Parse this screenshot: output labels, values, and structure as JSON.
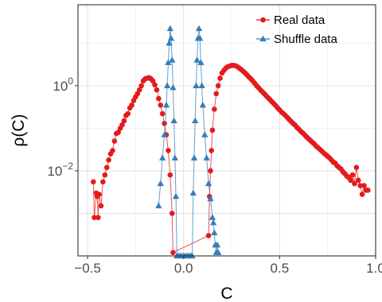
{
  "chart_data": {
    "type": "line",
    "xlabel": "C",
    "ylabel": "ρ(C)",
    "y_scale": "log",
    "xlim": [
      -0.55,
      1.0
    ],
    "ylim": [
      0.0001,
      80
    ],
    "x_ticks": [
      {
        "value": -0.5,
        "label": "−0.5"
      },
      {
        "value": 0.0,
        "label": "0.0"
      },
      {
        "value": 0.5,
        "label": "0.5"
      },
      {
        "value": 1.0,
        "label": "1.0"
      }
    ],
    "y_ticks": [
      {
        "value": 0.01,
        "base": "10",
        "exp": "−2"
      },
      {
        "value": 1,
        "base": "10",
        "exp": "0"
      }
    ],
    "grid": true,
    "legend_position": "top-right",
    "series": [
      {
        "name": "Real data",
        "color": "#e41a1c",
        "marker": "circle",
        "points": [
          [
            -0.47,
            0.0055
          ],
          [
            -0.465,
            0.0008
          ],
          [
            -0.455,
            0.003
          ],
          [
            -0.45,
            0.0025
          ],
          [
            -0.445,
            0.0008
          ],
          [
            -0.44,
            0.0028
          ],
          [
            -0.43,
            0.0015
          ],
          [
            -0.42,
            0.0055
          ],
          [
            -0.41,
            0.008
          ],
          [
            -0.4,
            0.012
          ],
          [
            -0.39,
            0.018
          ],
          [
            -0.38,
            0.025
          ],
          [
            -0.37,
            0.03
          ],
          [
            -0.36,
            0.05
          ],
          [
            -0.35,
            0.075
          ],
          [
            -0.34,
            0.08
          ],
          [
            -0.33,
            0.1
          ],
          [
            -0.32,
            0.12
          ],
          [
            -0.31,
            0.15
          ],
          [
            -0.3,
            0.2
          ],
          [
            -0.29,
            0.22
          ],
          [
            -0.28,
            0.3
          ],
          [
            -0.27,
            0.35
          ],
          [
            -0.26,
            0.45
          ],
          [
            -0.25,
            0.55
          ],
          [
            -0.24,
            0.65
          ],
          [
            -0.23,
            0.8
          ],
          [
            -0.22,
            1.0
          ],
          [
            -0.21,
            1.3
          ],
          [
            -0.2,
            1.45
          ],
          [
            -0.19,
            1.5
          ],
          [
            -0.18,
            1.55
          ],
          [
            -0.17,
            1.45
          ],
          [
            -0.16,
            1.3
          ],
          [
            -0.15,
            1.05
          ],
          [
            -0.14,
            0.8
          ],
          [
            -0.13,
            0.5
          ],
          [
            -0.12,
            0.35
          ],
          [
            -0.11,
            0.22
          ],
          [
            -0.1,
            0.13
          ],
          [
            -0.09,
            0.07
          ],
          [
            -0.08,
            0.03
          ],
          [
            -0.07,
            0.008
          ],
          [
            -0.06,
            0.001
          ],
          [
            -0.055,
            0.00012
          ],
          [
            0.13,
            0.0003
          ],
          [
            0.135,
            0.0025
          ],
          [
            0.14,
            0.01
          ],
          [
            0.145,
            0.03
          ],
          [
            0.15,
            0.09
          ],
          [
            0.16,
            0.28
          ],
          [
            0.17,
            0.65
          ],
          [
            0.18,
            1.0
          ],
          [
            0.19,
            1.5
          ],
          [
            0.2,
            2.0
          ],
          [
            0.21,
            2.3
          ],
          [
            0.22,
            2.6
          ],
          [
            0.23,
            2.8
          ],
          [
            0.24,
            2.9
          ],
          [
            0.25,
            3.0
          ],
          [
            0.26,
            3.0
          ],
          [
            0.27,
            2.95
          ],
          [
            0.28,
            2.8
          ],
          [
            0.29,
            2.6
          ],
          [
            0.3,
            2.4
          ],
          [
            0.31,
            2.2
          ],
          [
            0.32,
            2.0
          ],
          [
            0.33,
            1.8
          ],
          [
            0.34,
            1.6
          ],
          [
            0.35,
            1.45
          ],
          [
            0.36,
            1.3
          ],
          [
            0.37,
            1.15
          ],
          [
            0.38,
            1.0
          ],
          [
            0.39,
            0.9
          ],
          [
            0.4,
            0.8
          ],
          [
            0.41,
            0.72
          ],
          [
            0.42,
            0.65
          ],
          [
            0.43,
            0.58
          ],
          [
            0.44,
            0.52
          ],
          [
            0.45,
            0.47
          ],
          [
            0.46,
            0.42
          ],
          [
            0.47,
            0.38
          ],
          [
            0.48,
            0.34
          ],
          [
            0.49,
            0.3
          ],
          [
            0.5,
            0.27
          ],
          [
            0.51,
            0.24
          ],
          [
            0.52,
            0.22
          ],
          [
            0.53,
            0.2
          ],
          [
            0.54,
            0.18
          ],
          [
            0.55,
            0.16
          ],
          [
            0.56,
            0.145
          ],
          [
            0.57,
            0.13
          ],
          [
            0.58,
            0.12
          ],
          [
            0.59,
            0.105
          ],
          [
            0.6,
            0.095
          ],
          [
            0.61,
            0.085
          ],
          [
            0.62,
            0.078
          ],
          [
            0.63,
            0.07
          ],
          [
            0.64,
            0.063
          ],
          [
            0.65,
            0.057
          ],
          [
            0.66,
            0.052
          ],
          [
            0.67,
            0.047
          ],
          [
            0.68,
            0.043
          ],
          [
            0.69,
            0.038
          ],
          [
            0.7,
            0.035
          ],
          [
            0.71,
            0.032
          ],
          [
            0.72,
            0.029
          ],
          [
            0.73,
            0.026
          ],
          [
            0.74,
            0.024
          ],
          [
            0.75,
            0.022
          ],
          [
            0.76,
            0.02
          ],
          [
            0.77,
            0.018
          ],
          [
            0.78,
            0.016
          ],
          [
            0.79,
            0.015
          ],
          [
            0.8,
            0.013
          ],
          [
            0.81,
            0.012
          ],
          [
            0.82,
            0.011
          ],
          [
            0.83,
            0.0095
          ],
          [
            0.84,
            0.0085
          ],
          [
            0.85,
            0.0075
          ],
          [
            0.86,
            0.007
          ],
          [
            0.87,
            0.006
          ],
          [
            0.88,
            0.008
          ],
          [
            0.89,
            0.005
          ],
          [
            0.9,
            0.012
          ],
          [
            0.91,
            0.006
          ],
          [
            0.92,
            0.0045
          ],
          [
            0.93,
            0.0028
          ],
          [
            0.94,
            0.0045
          ],
          [
            0.95,
            0.0035
          ],
          [
            0.96,
            0.0035
          ]
        ]
      },
      {
        "name": "Shuffle data",
        "color": "#377eb8",
        "marker": "triangle",
        "points": [
          [
            -0.13,
            0.0015
          ],
          [
            -0.12,
            0.005
          ],
          [
            -0.11,
            0.02
          ],
          [
            -0.1,
            0.07
          ],
          [
            -0.09,
            0.35
          ],
          [
            -0.085,
            1.0
          ],
          [
            -0.08,
            3.5
          ],
          [
            -0.075,
            10.0
          ],
          [
            -0.07,
            22.0
          ],
          [
            -0.065,
            13.0
          ],
          [
            -0.06,
            4.0
          ],
          [
            -0.055,
            0.9
          ],
          [
            -0.05,
            0.15
          ],
          [
            -0.045,
            0.02
          ],
          [
            -0.04,
            0.0025
          ],
          [
            -0.035,
            0.0001
          ],
          [
            -0.03,
            0.0001
          ],
          [
            -0.02,
            0.0001
          ],
          [
            -0.01,
            0.0001
          ],
          [
            0.0,
            0.0001
          ],
          [
            0.01,
            0.0001
          ],
          [
            0.02,
            0.0001
          ],
          [
            0.03,
            0.0001
          ],
          [
            0.04,
            0.0001
          ],
          [
            0.045,
            0.0001
          ],
          [
            0.05,
            0.003
          ],
          [
            0.055,
            0.02
          ],
          [
            0.06,
            0.15
          ],
          [
            0.065,
            1.0
          ],
          [
            0.07,
            4.0
          ],
          [
            0.075,
            13.0
          ],
          [
            0.08,
            22.0
          ],
          [
            0.085,
            13.0
          ],
          [
            0.09,
            3.5
          ],
          [
            0.095,
            1.0
          ],
          [
            0.1,
            0.35
          ],
          [
            0.11,
            0.07
          ],
          [
            0.12,
            0.02
          ],
          [
            0.13,
            0.005
          ],
          [
            0.14,
            0.0022
          ],
          [
            0.15,
            0.0008
          ],
          [
            0.155,
            0.0006
          ],
          [
            0.16,
            0.00035
          ],
          [
            0.165,
            0.00018
          ],
          [
            0.17,
            0.00012
          ],
          [
            0.175,
            0.00018
          ],
          [
            0.18,
            0.00012
          ]
        ]
      }
    ]
  }
}
